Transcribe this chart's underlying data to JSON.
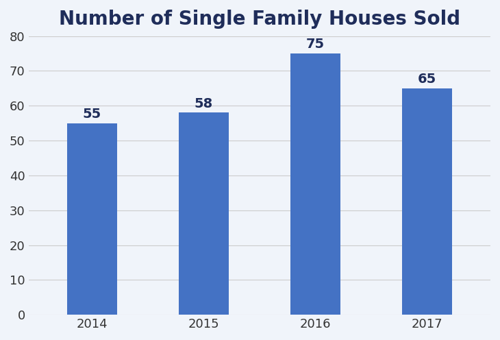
{
  "title": "Number of Single Family Houses Sold",
  "categories": [
    "2014",
    "2015",
    "2016",
    "2017"
  ],
  "values": [
    55,
    58,
    75,
    65
  ],
  "bar_color": "#4472C4",
  "background_color": "#F0F4FA",
  "plot_bg_color": "#FFFFFF",
  "ylim": [
    0,
    80
  ],
  "yticks": [
    0,
    10,
    20,
    30,
    40,
    50,
    60,
    70,
    80
  ],
  "title_fontsize": 20,
  "title_fontweight": "bold",
  "tick_fontsize": 13,
  "bar_width": 0.45,
  "title_color": "#1F2D5A",
  "tick_color": "#333333",
  "grid_color": "#CCCCCC",
  "annotation_fontsize": 14,
  "annotation_fontweight": "bold",
  "annotation_color": "#1F2D5A",
  "border_color": "#D0D8E8"
}
